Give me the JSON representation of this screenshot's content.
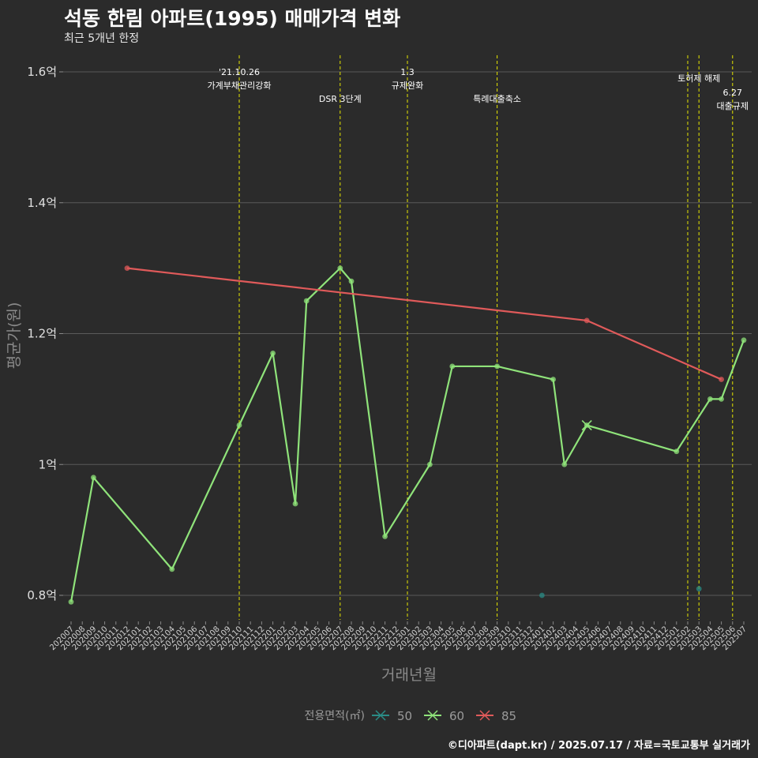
{
  "header": {
    "title": "석동 한림 아파트(1995) 매매가격 변화",
    "subtitle": "최근 5개년 한정"
  },
  "caption": "©디아파트(dapt.kr) / 2025.07.17 / 자료=국토교통부 실거래가",
  "colors": {
    "background": "#2b2b2b",
    "grid": "#5a5a5a",
    "event_line": "#e6e600",
    "s50": "#2a8c86",
    "s60": "#8fe37a",
    "s85": "#e05a5a"
  },
  "chart_data": {
    "type": "line",
    "xlabel": "거래년월",
    "ylabel": "평균가(원)",
    "ylim": [
      0.76,
      1.62
    ],
    "y_unit": "억",
    "y_ticks": [
      {
        "value": 0.8,
        "label": "0.8억"
      },
      {
        "value": 1.0,
        "label": "1억"
      },
      {
        "value": 1.2,
        "label": "1.2억"
      },
      {
        "value": 1.4,
        "label": "1.4억"
      },
      {
        "value": 1.6,
        "label": "1.6억"
      }
    ],
    "categories": [
      "202007",
      "202008",
      "202009",
      "202010",
      "202011",
      "202012",
      "202101",
      "202102",
      "202103",
      "202104",
      "202105",
      "202106",
      "202107",
      "202108",
      "202109",
      "202110",
      "202111",
      "202112",
      "202201",
      "202202",
      "202203",
      "202204",
      "202205",
      "202206",
      "202207",
      "202208",
      "202209",
      "202210",
      "202211",
      "202212",
      "202301",
      "202302",
      "202303",
      "202304",
      "202305",
      "202306",
      "202307",
      "202308",
      "202309",
      "202310",
      "202311",
      "202312",
      "202401",
      "202402",
      "202403",
      "202404",
      "202405",
      "202406",
      "202407",
      "202408",
      "202409",
      "202410",
      "202411",
      "202412",
      "202501",
      "202502",
      "202503",
      "202504",
      "202505",
      "202506",
      "202507"
    ],
    "series": [
      {
        "name": "50",
        "color": "#2a8c86",
        "connected": false,
        "points": [
          {
            "x": "202401",
            "y": 0.8
          },
          {
            "x": "202503",
            "y": 0.81
          }
        ]
      },
      {
        "name": "60",
        "color": "#8fe37a",
        "connected": true,
        "points": [
          {
            "x": "202007",
            "y": 0.79
          },
          {
            "x": "202009",
            "y": 0.98
          },
          {
            "x": "202104",
            "y": 0.84
          },
          {
            "x": "202110",
            "y": 1.06
          },
          {
            "x": "202201",
            "y": 1.17
          },
          {
            "x": "202203",
            "y": 0.94
          },
          {
            "x": "202204",
            "y": 1.25
          },
          {
            "x": "202207",
            "y": 1.3
          },
          {
            "x": "202208",
            "y": 1.28
          },
          {
            "x": "202211",
            "y": 0.89
          },
          {
            "x": "202303",
            "y": 1.0
          },
          {
            "x": "202305",
            "y": 1.15
          },
          {
            "x": "202309",
            "y": 1.15
          },
          {
            "x": "202402",
            "y": 1.13
          },
          {
            "x": "202403",
            "y": 1.0
          },
          {
            "x": "202405",
            "y": 1.06
          },
          {
            "x": "202501",
            "y": 1.02
          },
          {
            "x": "202504",
            "y": 1.1
          },
          {
            "x": "202505",
            "y": 1.1
          },
          {
            "x": "202507",
            "y": 1.19
          }
        ]
      },
      {
        "name": "85",
        "color": "#e05a5a",
        "connected": true,
        "points": [
          {
            "x": "202012",
            "y": 1.3
          },
          {
            "x": "202405",
            "y": 1.22
          },
          {
            "x": "202505",
            "y": 1.13
          }
        ]
      }
    ],
    "events": [
      {
        "x": "202110",
        "lines": [
          "'21.10.26",
          "가계부채관리강화"
        ],
        "level": 1
      },
      {
        "x": "202207",
        "lines": [
          "DSR 3단계"
        ],
        "level": 3
      },
      {
        "x": "202301",
        "lines": [
          "1.3",
          "규제완화"
        ],
        "level": 1
      },
      {
        "x": "202309",
        "lines": [
          "특례대출축소"
        ],
        "level": 3
      },
      {
        "x": "202502",
        "lines": [],
        "level": 0
      },
      {
        "x": "202503",
        "lines": [
          "토허제 해제"
        ],
        "level": 2
      },
      {
        "x": "202506",
        "lines": [
          "6.27",
          "대출규제"
        ],
        "level": 4
      }
    ],
    "legend": {
      "title": "전용면적(㎡)",
      "items": [
        "50",
        "60",
        "85"
      ],
      "position": "bottom"
    }
  }
}
